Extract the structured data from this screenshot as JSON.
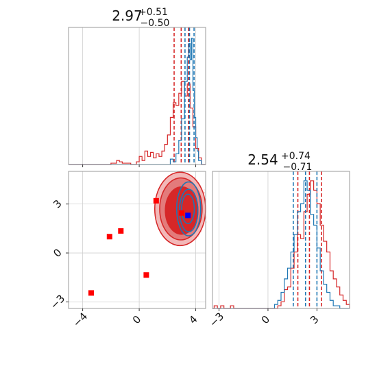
{
  "chart_data": [
    {
      "type": "histogram",
      "panel": "marginal-top",
      "title": {
        "median": "2.97",
        "plus": "+0.51",
        "minus": "−0.50"
      },
      "xlim": [
        -5,
        4.7
      ],
      "grid": true,
      "xticks": [
        -4,
        0,
        4
      ],
      "series": [
        {
          "color": "#d62728",
          "bins": [
            [
              -5,
              -2,
              0
            ],
            [
              -2,
              -1.6,
              0.01
            ],
            [
              -1.6,
              -1.4,
              0.03
            ],
            [
              -1.4,
              -1.2,
              0.02
            ],
            [
              -1.2,
              -0.6,
              0.01
            ],
            [
              -0.6,
              -0.2,
              0
            ],
            [
              -0.2,
              0,
              0.02
            ],
            [
              0,
              0.2,
              0.06
            ],
            [
              0.2,
              0.4,
              0.03
            ],
            [
              0.4,
              0.6,
              0.1
            ],
            [
              0.6,
              0.8,
              0.06
            ],
            [
              0.8,
              1.0,
              0.09
            ],
            [
              1.0,
              1.2,
              0.05
            ],
            [
              1.2,
              1.4,
              0.08
            ],
            [
              1.4,
              1.6,
              0.06
            ],
            [
              1.6,
              1.8,
              0.1
            ],
            [
              1.8,
              2.0,
              0.15
            ],
            [
              2.0,
              2.2,
              0.22
            ],
            [
              2.2,
              2.4,
              0.35
            ],
            [
              2.4,
              2.6,
              0.46
            ],
            [
              2.6,
              2.8,
              0.44
            ],
            [
              2.8,
              3.0,
              0.53
            ],
            [
              3.0,
              3.2,
              0.62
            ],
            [
              3.2,
              3.4,
              0.51
            ],
            [
              3.4,
              3.6,
              0.6
            ],
            [
              3.6,
              3.8,
              0.42
            ],
            [
              3.8,
              4.0,
              0.28
            ],
            [
              4.0,
              4.2,
              0.12
            ],
            [
              4.2,
              4.4,
              0.05
            ],
            [
              4.4,
              4.7,
              0
            ]
          ],
          "quantiles": [
            2.47,
            2.97,
            3.48
          ]
        },
        {
          "color": "#1f77b4",
          "bins": [
            [
              -5,
              2.2,
              0
            ],
            [
              2.2,
              2.4,
              0.04
            ],
            [
              2.4,
              2.6,
              0.02
            ],
            [
              2.6,
              2.8,
              0.08
            ],
            [
              2.8,
              3.0,
              0.18
            ],
            [
              3.0,
              3.2,
              0.34
            ],
            [
              3.2,
              3.4,
              0.62
            ],
            [
              3.4,
              3.5,
              0.8
            ],
            [
              3.5,
              3.6,
              0.9
            ],
            [
              3.6,
              3.7,
              0.78
            ],
            [
              3.7,
              3.8,
              0.94
            ],
            [
              3.8,
              3.9,
              0.55
            ],
            [
              3.9,
              4.0,
              0.35
            ],
            [
              4.0,
              4.1,
              0.2
            ],
            [
              4.1,
              4.2,
              0.1
            ],
            [
              4.2,
              4.4,
              0.03
            ],
            [
              4.4,
              4.7,
              0
            ]
          ],
          "quantiles": [
            3.24,
            3.56,
            3.88
          ]
        }
      ]
    },
    {
      "type": "scatter",
      "panel": "joint",
      "xlim": [
        -5,
        4.7
      ],
      "ylim": [
        -3.4,
        5
      ],
      "grid": true,
      "xticks": [
        -4,
        0,
        4
      ],
      "yticks": [
        -3,
        0,
        3
      ],
      "red_squares": [
        [
          1.2,
          3.2
        ],
        [
          -2.1,
          1.0
        ],
        [
          -1.3,
          1.35
        ],
        [
          0.5,
          -1.35
        ],
        [
          -3.4,
          -2.45
        ],
        [
          3.0,
          2.45
        ]
      ],
      "blue_squares": [
        [
          3.45,
          2.3
        ]
      ],
      "red_contours": [
        {
          "cx": 2.9,
          "cy": 2.7,
          "rx": 1.8,
          "ry": 2.25,
          "fill": "#f2b8b8"
        },
        {
          "cx": 2.95,
          "cy": 2.7,
          "rx": 1.5,
          "ry": 1.9,
          "fill": "#e37b7b"
        },
        {
          "cx": 3.0,
          "cy": 2.6,
          "rx": 1.15,
          "ry": 1.45,
          "fill": "#d62728"
        }
      ],
      "blue_contours": [
        {
          "cx": 3.5,
          "cy": 2.7,
          "rx": 0.85,
          "ry": 1.65
        },
        {
          "cx": 3.5,
          "cy": 2.6,
          "rx": 0.65,
          "ry": 1.3
        },
        {
          "cx": 3.45,
          "cy": 2.7,
          "rx": 0.45,
          "ry": 0.9
        }
      ]
    },
    {
      "type": "histogram",
      "panel": "marginal-right",
      "title": {
        "median": "2.54",
        "plus": "+0.74",
        "minus": "−0.71"
      },
      "xlim": [
        -3.4,
        5
      ],
      "grid": true,
      "xticks": [
        -3,
        0,
        3
      ],
      "series": [
        {
          "color": "#d62728",
          "bins": [
            [
              -3.4,
              -3.3,
              0
            ],
            [
              -3.3,
              -3.1,
              0.02
            ],
            [
              -3.1,
              -2.9,
              0
            ],
            [
              -2.9,
              -2.7,
              0.02
            ],
            [
              -2.7,
              -2.3,
              0
            ],
            [
              -2.3,
              -2.1,
              0.02
            ],
            [
              -2.1,
              0.6,
              0
            ],
            [
              0.6,
              0.8,
              0.02
            ],
            [
              0.8,
              1.0,
              0.05
            ],
            [
              1.0,
              1.2,
              0.14
            ],
            [
              1.2,
              1.4,
              0.16
            ],
            [
              1.4,
              1.6,
              0.3
            ],
            [
              1.6,
              1.8,
              0.42
            ],
            [
              1.8,
              2.0,
              0.55
            ],
            [
              2.0,
              2.2,
              0.52
            ],
            [
              2.2,
              2.4,
              0.72
            ],
            [
              2.4,
              2.6,
              0.85
            ],
            [
              2.6,
              2.8,
              0.95
            ],
            [
              2.8,
              3.0,
              0.88
            ],
            [
              3.0,
              3.2,
              0.78
            ],
            [
              3.2,
              3.4,
              0.62
            ],
            [
              3.4,
              3.6,
              0.5
            ],
            [
              3.6,
              3.8,
              0.42
            ],
            [
              3.8,
              4.0,
              0.28
            ],
            [
              4.0,
              4.2,
              0.22
            ],
            [
              4.2,
              4.4,
              0.16
            ],
            [
              4.4,
              4.6,
              0.1
            ],
            [
              4.6,
              4.8,
              0.06
            ],
            [
              4.8,
              5.0,
              0.03
            ]
          ],
          "quantiles": [
            1.83,
            2.54,
            3.28
          ]
        },
        {
          "color": "#1f77b4",
          "bins": [
            [
              -3.4,
              0.4,
              0
            ],
            [
              0.4,
              0.6,
              0.03
            ],
            [
              0.6,
              0.8,
              0.06
            ],
            [
              0.8,
              1.0,
              0.12
            ],
            [
              1.0,
              1.2,
              0.22
            ],
            [
              1.2,
              1.4,
              0.3
            ],
            [
              1.4,
              1.6,
              0.42
            ],
            [
              1.6,
              1.8,
              0.55
            ],
            [
              1.8,
              2.0,
              0.72
            ],
            [
              2.0,
              2.2,
              0.78
            ],
            [
              2.2,
              2.4,
              0.95
            ],
            [
              2.4,
              2.6,
              0.88
            ],
            [
              2.6,
              2.8,
              0.7
            ],
            [
              2.8,
              3.0,
              0.62
            ],
            [
              3.0,
              3.2,
              0.45
            ],
            [
              3.2,
              3.4,
              0.28
            ],
            [
              3.4,
              3.6,
              0.18
            ],
            [
              3.6,
              3.8,
              0.12
            ],
            [
              3.8,
              4.0,
              0.06
            ],
            [
              4.0,
              4.4,
              0.02
            ],
            [
              4.4,
              5.0,
              0
            ]
          ],
          "quantiles": [
            1.55,
            2.3,
            3.0
          ]
        }
      ]
    }
  ]
}
